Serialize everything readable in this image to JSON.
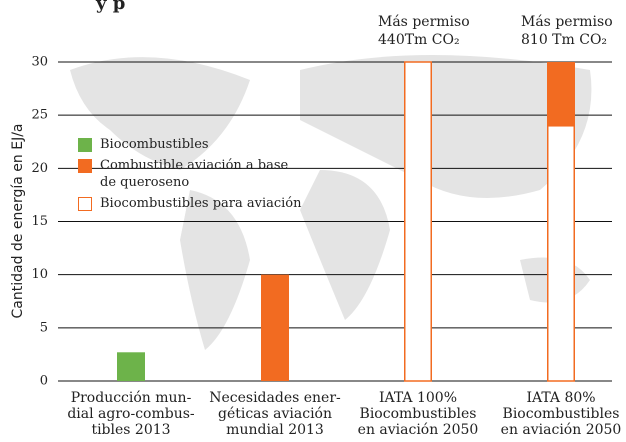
{
  "chart_data": {
    "type": "stacked_bar",
    "title": "y p",
    "ylabel": "Cantidad de energía en EJ/a",
    "categories": [
      [
        "Producción mun-",
        "dial agro-combus-",
        "tibles 2013"
      ],
      [
        "Necesidades ener-",
        "géticas aviación",
        "mundial 2013"
      ],
      [
        "IATA 100%",
        "Biocombustibles",
        "en aviación 2050"
      ],
      [
        "IATA 80%",
        "Biocombustibles",
        "en aviación 2050"
      ]
    ],
    "series": [
      {
        "name": "Biocombustibles",
        "color": "#6db34a",
        "fill": "solid",
        "values": [
          2.7,
          null,
          null,
          null
        ]
      },
      {
        "name": "Combustible aviación a base de queroseno",
        "color": "#f26b21",
        "fill": "solid",
        "values": [
          null,
          10,
          null,
          6
        ]
      },
      {
        "name": "Biocombustibles para aviación",
        "color": "#f26b21",
        "fill": "outline",
        "values": [
          null,
          null,
          30,
          24
        ]
      }
    ],
    "annotations": [
      {
        "category": 2,
        "lines": [
          "Más permiso",
          "440Tm CO₂"
        ]
      },
      {
        "category": 3,
        "lines": [
          "Más permiso",
          "810 Tm CO₂"
        ]
      }
    ],
    "ylim": [
      0,
      30
    ],
    "yticks": [
      0,
      5,
      10,
      15,
      20,
      25,
      30
    ],
    "grid": true
  }
}
